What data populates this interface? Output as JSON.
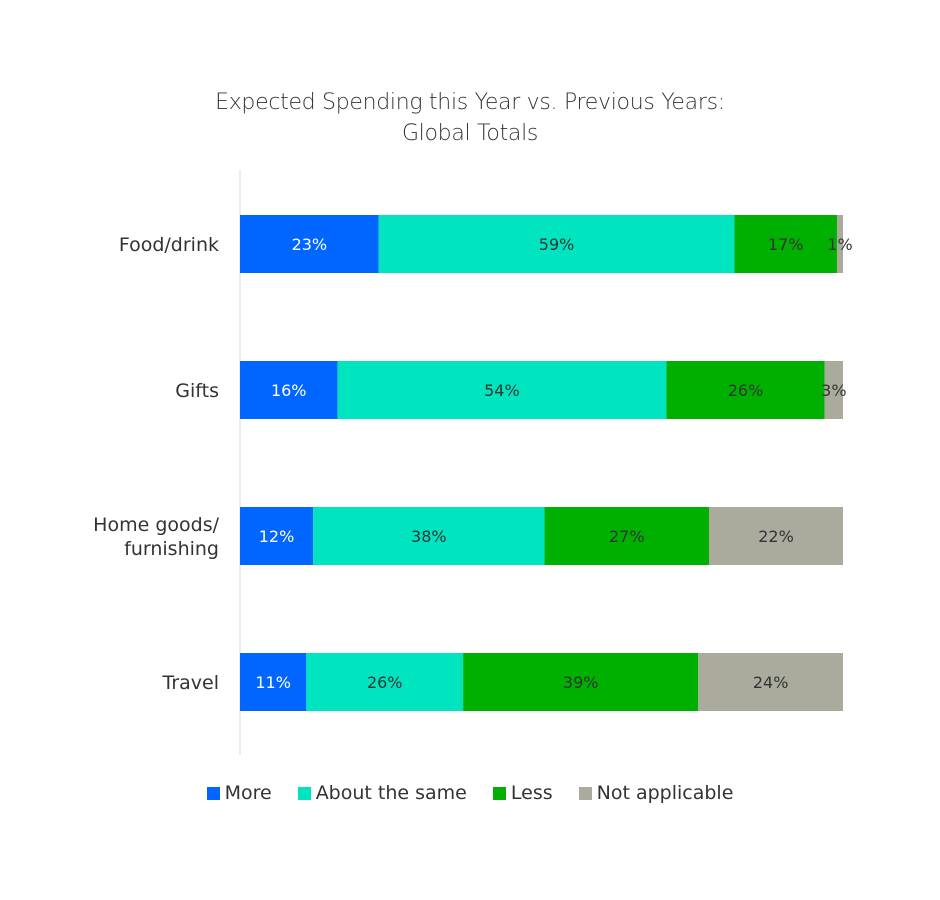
{
  "chart_data": {
    "type": "bar",
    "orientation": "horizontal",
    "stacked": true,
    "title": "Expected Spending this Year vs. Previous Years:",
    "subtitle": "Global Totals",
    "categories": [
      [
        "Food/drink"
      ],
      [
        "Gifts"
      ],
      [
        "Home goods/",
        "furnishing"
      ],
      [
        "Travel"
      ]
    ],
    "series": [
      {
        "name": "More",
        "color": "#0066ff",
        "label_color": "#ffffff",
        "values": [
          23,
          16,
          12,
          11
        ]
      },
      {
        "name": "About the same",
        "color": "#00e4c0",
        "label_color": "#333333",
        "values": [
          59,
          54,
          38,
          26
        ]
      },
      {
        "name": "Less",
        "color": "#00b000",
        "label_color": "#333333",
        "values": [
          17,
          26,
          27,
          39
        ]
      },
      {
        "name": "Not applicable",
        "color": "#aaab9d",
        "label_color": "#333333",
        "values": [
          1,
          3,
          22,
          24
        ]
      }
    ],
    "value_suffix": "%",
    "grid": false,
    "legend_position": "bottom"
  }
}
